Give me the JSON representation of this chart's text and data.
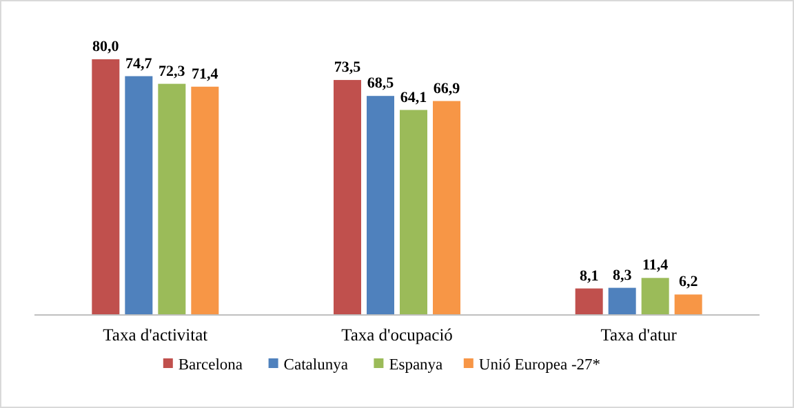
{
  "chart_data": {
    "type": "bar",
    "categories": [
      "Taxa d'activitat",
      "Taxa d'ocupació",
      "Taxa d'atur"
    ],
    "series": [
      {
        "name": "Barcelona",
        "color": "#c0504d",
        "values": [
          80.0,
          73.5,
          8.1
        ],
        "value_labels": [
          "80,0",
          "73,5",
          "8,1"
        ]
      },
      {
        "name": "Catalunya",
        "color": "#4f81bd",
        "values": [
          74.7,
          68.5,
          8.3
        ],
        "value_labels": [
          "74,7",
          "68,5",
          "8,3"
        ]
      },
      {
        "name": "Espanya",
        "color": "#9bbb59",
        "values": [
          72.3,
          64.1,
          11.4
        ],
        "value_labels": [
          "72,3",
          "64,1",
          "11,4"
        ]
      },
      {
        "name": "Unió Europea -27*",
        "color": "#f79646",
        "values": [
          71.4,
          66.9,
          6.2
        ],
        "value_labels": [
          "71,4",
          "66,9",
          "6,2"
        ]
      }
    ],
    "legend": "bottom"
  }
}
